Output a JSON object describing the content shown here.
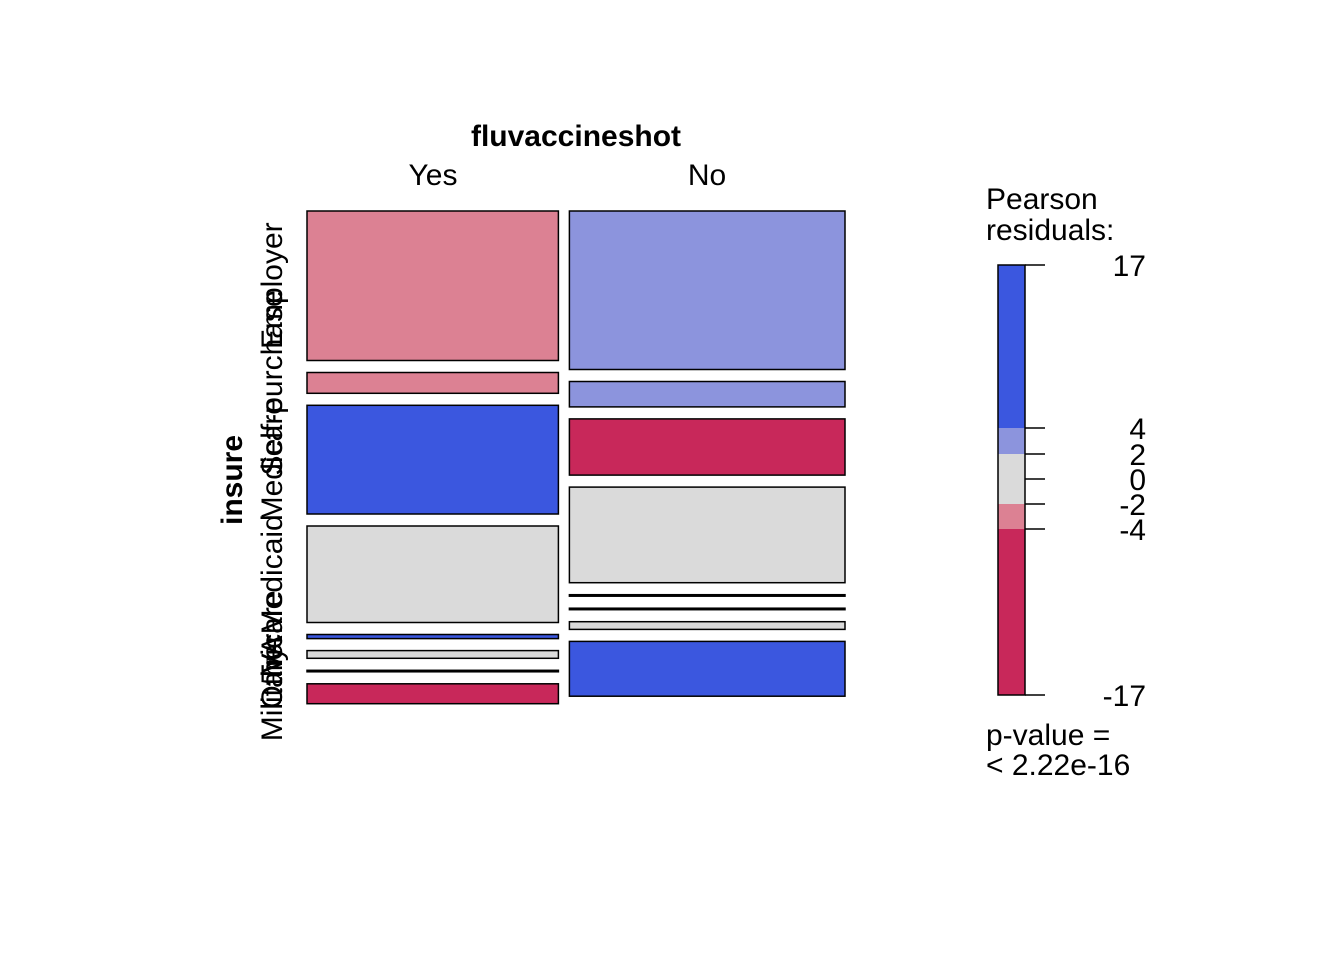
{
  "chart_data": {
    "type": "mosaic",
    "column_variable": "fluvaccineshot",
    "row_variable": "insure",
    "columns": [
      "Yes",
      "No"
    ],
    "rows": [
      "Employer",
      "Self-purchase",
      "Medicare",
      "Medicaid",
      "Tricare",
      "VA",
      "Other",
      "Military"
    ],
    "cells": {
      "Yes": [
        {
          "row": "Employer",
          "share": 0.33,
          "residual_band": "-4 to -2"
        },
        {
          "row": "Self-purchase",
          "share": 0.046,
          "residual_band": "-4 to -2"
        },
        {
          "row": "Medicare",
          "share": 0.24,
          "residual_band": "> 4"
        },
        {
          "row": "Medicaid",
          "share": 0.213,
          "residual_band": "-2 to 2"
        },
        {
          "row": "Tricare",
          "share": 0.009,
          "residual_band": "> 4"
        },
        {
          "row": "VA",
          "share": 0.017,
          "residual_band": "-2 to 2"
        },
        {
          "row": "Other",
          "share": 0.001,
          "residual_band": "-2 to 2"
        },
        {
          "row": "Military",
          "share": 0.044,
          "residual_band": "< -4"
        }
      ],
      "No": [
        {
          "row": "Employer",
          "share": 0.35,
          "residual_band": "2 to 4"
        },
        {
          "row": "Self-purchase",
          "share": 0.056,
          "residual_band": "2 to 4"
        },
        {
          "row": "Medicare",
          "share": 0.124,
          "residual_band": "< -4"
        },
        {
          "row": "Medicaid",
          "share": 0.211,
          "residual_band": "-2 to 2"
        },
        {
          "row": "Tricare",
          "share": 0.002,
          "residual_band": "< -4"
        },
        {
          "row": "VA",
          "share": 0.001,
          "residual_band": "-2 to 2"
        },
        {
          "row": "Other",
          "share": 0.017,
          "residual_band": "-2 to 2"
        },
        {
          "row": "Military",
          "share": 0.121,
          "residual_band": "> 4"
        }
      ]
    },
    "column_widths": {
      "Yes": 0.477,
      "No": 0.523
    },
    "legend": {
      "title_line1": "Pearson",
      "title_line2": "residuals:",
      "ticks": [
        "17",
        "4",
        "2",
        "0",
        "-2",
        "-4",
        "-17"
      ],
      "tick_values": [
        17,
        4,
        2,
        0,
        -2,
        -4,
        -17
      ],
      "bands": [
        {
          "from": 4,
          "to": 17,
          "color": "#3b57df"
        },
        {
          "from": 2,
          "to": 4,
          "color": "#8c94dd"
        },
        {
          "from": -2,
          "to": 2,
          "color": "#dadada"
        },
        {
          "from": -4,
          "to": -2,
          "color": "#dc8193"
        },
        {
          "from": -17,
          "to": -4,
          "color": "#c8285a"
        }
      ],
      "pvalue_line1": "p-value =",
      "pvalue_line2": "< 2.22e-16"
    },
    "colors": {
      "strong_positive": "#3b57df",
      "positive": "#8c94dd",
      "neutral": "#dadada",
      "negative": "#dc8193",
      "strong_negative": "#c8285a"
    }
  }
}
